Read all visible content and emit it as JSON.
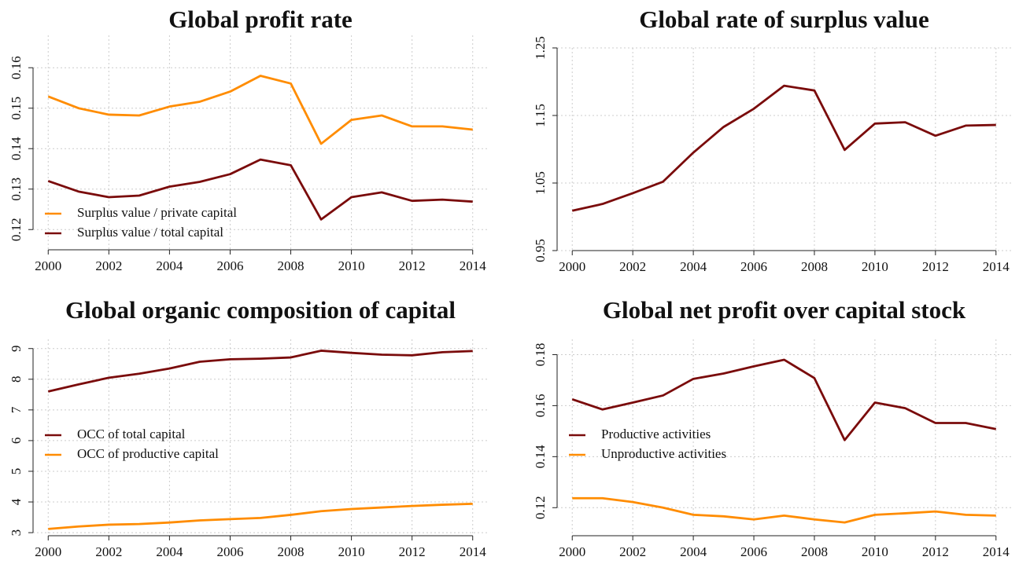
{
  "chart_data": [
    {
      "type": "line",
      "title": "Global profit rate",
      "x": [
        2000,
        2001,
        2002,
        2003,
        2004,
        2005,
        2006,
        2007,
        2008,
        2009,
        2010,
        2011,
        2012,
        2013,
        2014
      ],
      "series": [
        {
          "name": "Surplus value / private capital",
          "color": "#ff8c00",
          "values": [
            0.1529,
            0.15,
            0.1484,
            0.1482,
            0.1504,
            0.1516,
            0.1541,
            0.158,
            0.1561,
            0.1412,
            0.1471,
            0.1482,
            0.1455,
            0.1455,
            0.1447
          ]
        },
        {
          "name": "Surplus value / total capital",
          "color": "#7a0b0b",
          "values": [
            0.132,
            0.1294,
            0.128,
            0.1284,
            0.1306,
            0.1318,
            0.1337,
            0.1373,
            0.1359,
            0.1225,
            0.128,
            0.1292,
            0.1271,
            0.1274,
            0.1269
          ]
        }
      ],
      "xlim": [
        1999.5,
        2014.5
      ],
      "ylim": [
        0.115,
        0.168
      ],
      "xticks": [
        2000,
        2002,
        2004,
        2006,
        2008,
        2010,
        2012,
        2014
      ],
      "yticks": [
        0.12,
        0.13,
        0.14,
        0.15,
        0.16
      ],
      "grid": true,
      "legend": "lower-left"
    },
    {
      "type": "line",
      "title": "Global rate of surplus value",
      "x": [
        2000,
        2001,
        2002,
        2003,
        2004,
        2005,
        2006,
        2007,
        2008,
        2009,
        2010,
        2011,
        2012,
        2013,
        2014
      ],
      "series": [
        {
          "color": "#7a0b0b",
          "values": [
            1.009,
            1.019,
            1.035,
            1.052,
            1.095,
            1.133,
            1.16,
            1.194,
            1.187,
            1.099,
            1.138,
            1.14,
            1.12,
            1.135,
            1.136
          ]
        }
      ],
      "xlim": [
        1999.5,
        2014.5
      ],
      "ylim": [
        0.95,
        1.25
      ],
      "xticks": [
        2000,
        2002,
        2004,
        2006,
        2008,
        2010,
        2012,
        2014
      ],
      "yticks": [
        0.95,
        1.05,
        1.15,
        1.25
      ],
      "grid": true
    },
    {
      "type": "line",
      "title": "Global organic composition of capital",
      "x": [
        2000,
        2001,
        2002,
        2003,
        2004,
        2005,
        2006,
        2007,
        2008,
        2009,
        2010,
        2011,
        2012,
        2013,
        2014
      ],
      "series": [
        {
          "name": "OCC of total capital",
          "color": "#7a0b0b",
          "values": [
            7.6,
            7.83,
            8.05,
            8.18,
            8.35,
            8.57,
            8.65,
            8.67,
            8.71,
            8.93,
            8.86,
            8.8,
            8.78,
            8.88,
            8.92
          ]
        },
        {
          "name": "OCC of productive capital",
          "color": "#ff8c00",
          "values": [
            3.12,
            3.2,
            3.26,
            3.28,
            3.33,
            3.4,
            3.44,
            3.48,
            3.58,
            3.7,
            3.77,
            3.82,
            3.87,
            3.91,
            3.94
          ]
        }
      ],
      "xlim": [
        1999.5,
        2014.5
      ],
      "ylim": [
        2.9,
        9.3
      ],
      "xticks": [
        2000,
        2002,
        2004,
        2006,
        2008,
        2010,
        2012,
        2014
      ],
      "yticks": [
        3,
        4,
        5,
        6,
        7,
        8,
        9
      ],
      "grid": true,
      "legend": "center-left"
    },
    {
      "type": "line",
      "title": "Global net profit over capital stock",
      "x": [
        2000,
        2001,
        2002,
        2003,
        2004,
        2005,
        2006,
        2007,
        2008,
        2009,
        2010,
        2011,
        2012,
        2013,
        2014
      ],
      "series": [
        {
          "name": "Productive activities",
          "color": "#7a0b0b",
          "values": [
            0.1625,
            0.1585,
            0.1612,
            0.164,
            0.1705,
            0.1726,
            0.1754,
            0.178,
            0.1708,
            0.1465,
            0.1612,
            0.159,
            0.1532,
            0.1532,
            0.1508
          ]
        },
        {
          "name": "Unproductive activities",
          "color": "#ff8c00",
          "values": [
            0.1237,
            0.1237,
            0.1222,
            0.12,
            0.1172,
            0.1166,
            0.1154,
            0.1169,
            0.1154,
            0.1142,
            0.1172,
            0.1178,
            0.1185,
            0.1172,
            0.1169
          ]
        }
      ],
      "xlim": [
        1999.5,
        2014.5
      ],
      "ylim": [
        0.109,
        0.186
      ],
      "xticks": [
        2000,
        2002,
        2004,
        2006,
        2008,
        2010,
        2012,
        2014
      ],
      "yticks": [
        0.12,
        0.14,
        0.16,
        0.18
      ],
      "grid": true,
      "legend": "center-left"
    }
  ]
}
